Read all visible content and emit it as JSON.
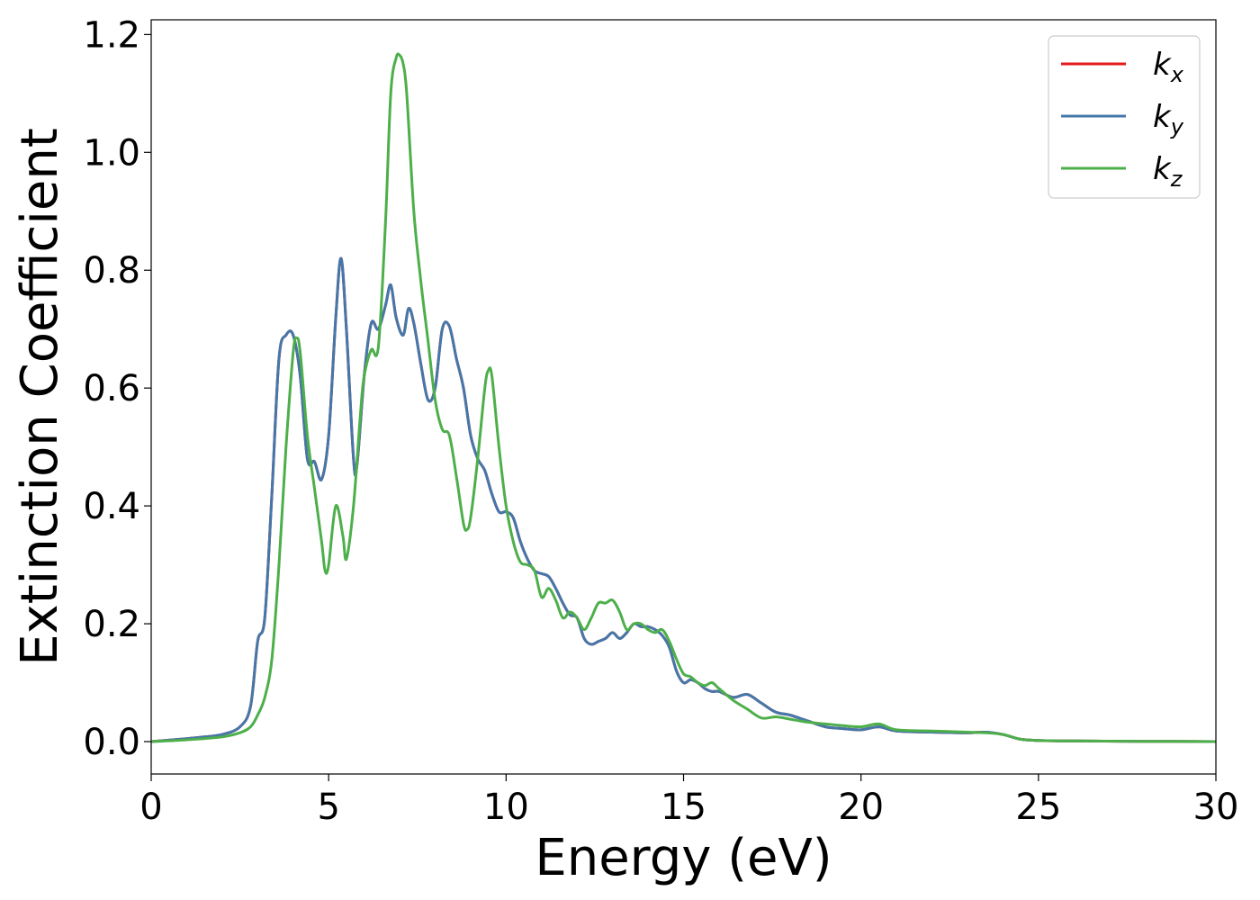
{
  "chart_data": {
    "type": "line",
    "xlabel": "Energy (eV)",
    "ylabel": "Extinction Coefficient",
    "xlim": [
      0,
      30
    ],
    "ylim": [
      -0.055,
      1.225
    ],
    "x_ticks": [
      0,
      5,
      10,
      15,
      20,
      25,
      30
    ],
    "x_tick_labels": [
      "0",
      "5",
      "10",
      "15",
      "20",
      "25",
      "30"
    ],
    "y_ticks": [
      0.0,
      0.2,
      0.4,
      0.6,
      0.8,
      1.0,
      1.2
    ],
    "y_tick_labels": [
      "0.0",
      "0.2",
      "0.4",
      "0.6",
      "0.8",
      "1.0",
      "1.2"
    ],
    "grid": false,
    "legend_position": "top-right",
    "series": [
      {
        "name": "k",
        "name_sub": "x",
        "color": "#e41a1c",
        "x": [
          0,
          1,
          1.5,
          2,
          2.5,
          2.8,
          3.0,
          3.2,
          3.4,
          3.6,
          3.8,
          4.0,
          4.2,
          4.4,
          4.6,
          4.8,
          5.0,
          5.2,
          5.35,
          5.5,
          5.7,
          5.8,
          6.0,
          6.2,
          6.4,
          6.6,
          6.75,
          6.9,
          7.1,
          7.25,
          7.4,
          7.6,
          7.8,
          8.0,
          8.2,
          8.4,
          8.6,
          8.8,
          9.0,
          9.2,
          9.4,
          9.6,
          9.8,
          10.0,
          10.2,
          10.4,
          10.6,
          10.8,
          11.0,
          11.2,
          11.4,
          11.6,
          11.8,
          12.0,
          12.2,
          12.4,
          12.6,
          12.8,
          13.0,
          13.2,
          13.4,
          13.6,
          13.8,
          14.0,
          14.2,
          14.4,
          14.6,
          14.8,
          15.0,
          15.2,
          15.4,
          15.6,
          15.8,
          16.0,
          16.4,
          16.8,
          17.2,
          17.6,
          18.0,
          18.5,
          19.0,
          19.5,
          20.0,
          20.5,
          21.0,
          22.0,
          23.0,
          23.5,
          24.0,
          24.5,
          25.0,
          26.0,
          28.0,
          30.0
        ],
        "y": [
          0.0,
          0.005,
          0.008,
          0.012,
          0.025,
          0.06,
          0.17,
          0.21,
          0.42,
          0.65,
          0.69,
          0.69,
          0.62,
          0.48,
          0.475,
          0.445,
          0.52,
          0.72,
          0.82,
          0.7,
          0.48,
          0.47,
          0.62,
          0.71,
          0.7,
          0.74,
          0.775,
          0.72,
          0.69,
          0.735,
          0.71,
          0.64,
          0.58,
          0.6,
          0.7,
          0.705,
          0.65,
          0.6,
          0.52,
          0.48,
          0.46,
          0.42,
          0.39,
          0.39,
          0.38,
          0.34,
          0.31,
          0.29,
          0.285,
          0.28,
          0.26,
          0.235,
          0.215,
          0.21,
          0.175,
          0.165,
          0.17,
          0.175,
          0.185,
          0.175,
          0.185,
          0.2,
          0.195,
          0.195,
          0.19,
          0.18,
          0.16,
          0.12,
          0.1,
          0.105,
          0.1,
          0.09,
          0.085,
          0.085,
          0.075,
          0.08,
          0.065,
          0.05,
          0.045,
          0.035,
          0.025,
          0.022,
          0.02,
          0.025,
          0.018,
          0.016,
          0.015,
          0.016,
          0.012,
          0.004,
          0.002,
          0.001,
          0.0005,
          0.0
        ]
      },
      {
        "name": "k",
        "name_sub": "y",
        "color": "#4477aa",
        "x": [
          0,
          1,
          1.5,
          2,
          2.5,
          2.8,
          3.0,
          3.2,
          3.4,
          3.6,
          3.8,
          4.0,
          4.2,
          4.4,
          4.6,
          4.8,
          5.0,
          5.2,
          5.35,
          5.5,
          5.7,
          5.8,
          6.0,
          6.2,
          6.4,
          6.6,
          6.75,
          6.9,
          7.1,
          7.25,
          7.4,
          7.6,
          7.8,
          8.0,
          8.2,
          8.4,
          8.6,
          8.8,
          9.0,
          9.2,
          9.4,
          9.6,
          9.8,
          10.0,
          10.2,
          10.4,
          10.6,
          10.8,
          11.0,
          11.2,
          11.4,
          11.6,
          11.8,
          12.0,
          12.2,
          12.4,
          12.6,
          12.8,
          13.0,
          13.2,
          13.4,
          13.6,
          13.8,
          14.0,
          14.2,
          14.4,
          14.6,
          14.8,
          15.0,
          15.2,
          15.4,
          15.6,
          15.8,
          16.0,
          16.4,
          16.8,
          17.2,
          17.6,
          18.0,
          18.5,
          19.0,
          19.5,
          20.0,
          20.5,
          21.0,
          22.0,
          23.0,
          23.5,
          24.0,
          24.5,
          25.0,
          26.0,
          28.0,
          30.0
        ],
        "y": [
          0.0,
          0.005,
          0.008,
          0.012,
          0.025,
          0.06,
          0.17,
          0.21,
          0.42,
          0.65,
          0.69,
          0.69,
          0.62,
          0.48,
          0.475,
          0.445,
          0.52,
          0.72,
          0.82,
          0.7,
          0.48,
          0.47,
          0.62,
          0.71,
          0.7,
          0.74,
          0.775,
          0.72,
          0.69,
          0.735,
          0.71,
          0.64,
          0.58,
          0.6,
          0.7,
          0.705,
          0.65,
          0.6,
          0.52,
          0.48,
          0.46,
          0.42,
          0.39,
          0.39,
          0.38,
          0.34,
          0.31,
          0.29,
          0.285,
          0.28,
          0.26,
          0.235,
          0.215,
          0.21,
          0.175,
          0.165,
          0.17,
          0.175,
          0.185,
          0.175,
          0.185,
          0.2,
          0.195,
          0.195,
          0.19,
          0.18,
          0.16,
          0.12,
          0.1,
          0.105,
          0.1,
          0.09,
          0.085,
          0.085,
          0.075,
          0.08,
          0.065,
          0.05,
          0.045,
          0.035,
          0.025,
          0.022,
          0.02,
          0.025,
          0.018,
          0.016,
          0.015,
          0.016,
          0.012,
          0.004,
          0.002,
          0.001,
          0.0005,
          0.0
        ]
      },
      {
        "name": "k",
        "name_sub": "z",
        "color": "#4daf4a",
        "x": [
          0,
          1,
          2,
          2.5,
          2.8,
          3.0,
          3.2,
          3.4,
          3.6,
          3.8,
          4.0,
          4.1,
          4.2,
          4.4,
          4.6,
          4.8,
          4.9,
          5.0,
          5.2,
          5.4,
          5.5,
          5.7,
          5.9,
          6.0,
          6.2,
          6.4,
          6.6,
          6.75,
          6.9,
          7.0,
          7.1,
          7.2,
          7.4,
          7.6,
          7.8,
          8.0,
          8.2,
          8.4,
          8.6,
          8.8,
          8.9,
          9.0,
          9.2,
          9.4,
          9.5,
          9.6,
          9.8,
          10.0,
          10.2,
          10.4,
          10.6,
          10.8,
          11.0,
          11.2,
          11.4,
          11.6,
          11.8,
          12.0,
          12.2,
          12.4,
          12.6,
          12.8,
          13.0,
          13.2,
          13.4,
          13.6,
          13.8,
          14.0,
          14.2,
          14.4,
          14.6,
          14.8,
          15.0,
          15.2,
          15.4,
          15.6,
          15.8,
          16.0,
          16.4,
          16.8,
          17.2,
          17.6,
          18.0,
          18.5,
          19.0,
          19.5,
          20.0,
          20.5,
          21.0,
          22.0,
          23.0,
          23.5,
          24.0,
          24.5,
          25.0,
          26.0,
          28.0,
          30.0
        ],
        "y": [
          0.0,
          0.003,
          0.008,
          0.015,
          0.025,
          0.045,
          0.075,
          0.14,
          0.3,
          0.5,
          0.66,
          0.685,
          0.66,
          0.52,
          0.43,
          0.34,
          0.29,
          0.3,
          0.4,
          0.35,
          0.31,
          0.4,
          0.56,
          0.62,
          0.665,
          0.67,
          0.88,
          1.1,
          1.16,
          1.165,
          1.15,
          1.1,
          0.9,
          0.78,
          0.68,
          0.58,
          0.53,
          0.52,
          0.45,
          0.37,
          0.36,
          0.38,
          0.48,
          0.6,
          0.63,
          0.62,
          0.5,
          0.4,
          0.34,
          0.305,
          0.3,
          0.29,
          0.245,
          0.26,
          0.24,
          0.21,
          0.22,
          0.21,
          0.19,
          0.21,
          0.235,
          0.235,
          0.24,
          0.22,
          0.19,
          0.2,
          0.2,
          0.19,
          0.185,
          0.19,
          0.17,
          0.14,
          0.115,
          0.11,
          0.1,
          0.095,
          0.1,
          0.09,
          0.07,
          0.055,
          0.04,
          0.042,
          0.038,
          0.033,
          0.03,
          0.027,
          0.025,
          0.03,
          0.02,
          0.018,
          0.016,
          0.015,
          0.012,
          0.004,
          0.002,
          0.001,
          0.0005,
          0.0
        ]
      }
    ]
  }
}
